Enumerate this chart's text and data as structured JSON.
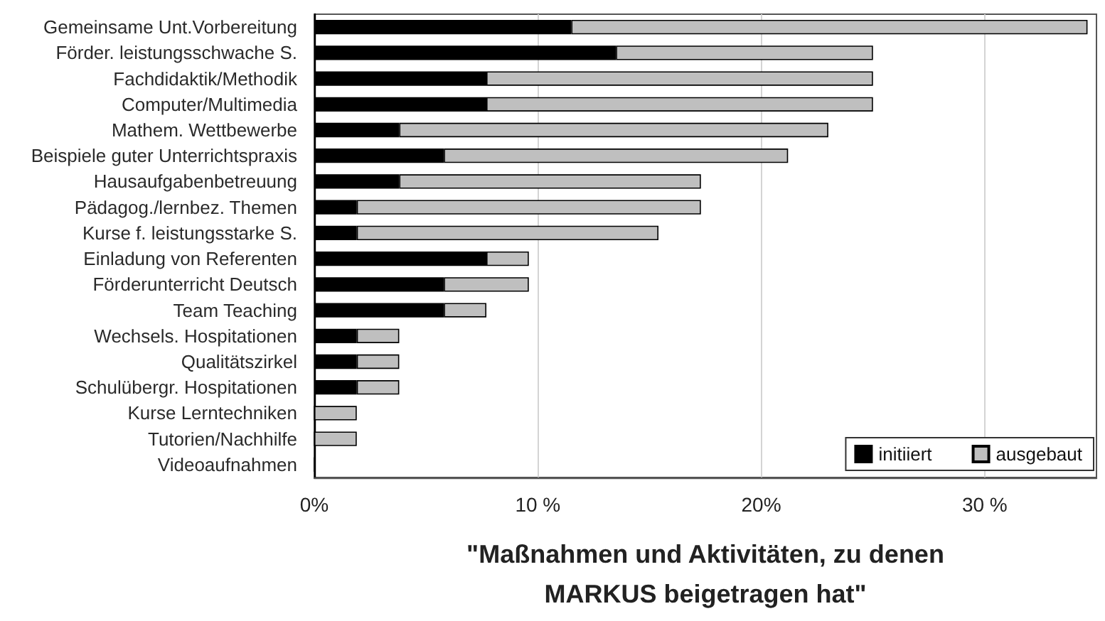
{
  "chart_data": {
    "type": "bar",
    "orientation": "horizontal",
    "stacked": true,
    "xlabel": "\"Maßnahmen und Aktivitäten, zu denen MARKUS beigetragen hat\"",
    "categories": [
      "Gemeinsame Unt.Vorbereitung",
      "Förder. leistungsschwache S.",
      "Fachdidaktik/Methodik",
      "Computer/Multimedia",
      "Mathem. Wettbewerbe",
      "Beispiele guter Unterrichtspraxis",
      "Hausaufgabenbetreuung",
      "Pädagog./lernbez. Themen",
      "Kurse f. leistungsstarke S.",
      "Einladung von Referenten",
      "Förderunterricht Deutsch",
      "Team Teaching",
      "Wechsels. Hospitationen",
      "Qualitätszirkel",
      "Schulübergr. Hospitationen",
      "Kurse Lerntechniken",
      "Tutorien/Nachhilfe",
      "Videoaufnahmen"
    ],
    "series": [
      {
        "name": "initiiert",
        "color": "#000000",
        "values": [
          11.5,
          13.5,
          7.7,
          7.7,
          3.8,
          5.8,
          3.8,
          1.9,
          1.9,
          7.7,
          5.8,
          5.8,
          1.9,
          1.9,
          1.9,
          0,
          0,
          0
        ]
      },
      {
        "name": "ausgebaut",
        "color": "#bfbfbf",
        "values": [
          23.1,
          11.5,
          17.3,
          17.3,
          19.2,
          15.4,
          13.5,
          15.4,
          13.5,
          1.9,
          3.8,
          1.9,
          1.9,
          1.9,
          1.9,
          1.9,
          1.9,
          0
        ]
      }
    ],
    "xlim": [
      0,
      35
    ],
    "xticks": [
      {
        "value": 0,
        "label": "0%"
      },
      {
        "value": 10,
        "label": "10 %"
      },
      {
        "value": 20,
        "label": "20%"
      },
      {
        "value": 30,
        "label": "30 %"
      }
    ],
    "grid": "x",
    "legend": "bottom right"
  }
}
